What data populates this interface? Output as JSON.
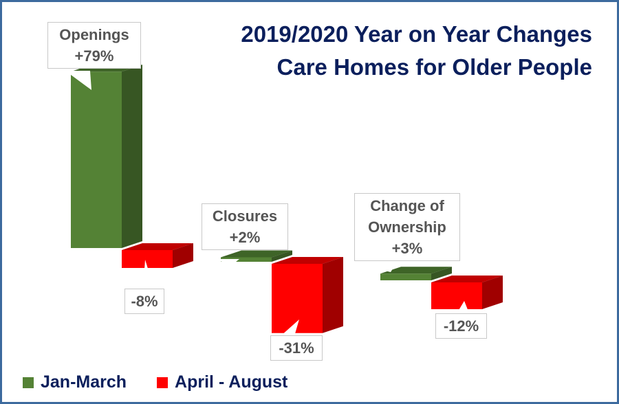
{
  "chart_data": {
    "type": "bar",
    "title": [
      "2019/2020 Year on Year Changes",
      "Care Homes for Older People"
    ],
    "categories": [
      "Openings",
      "Closures",
      "Change of Ownership"
    ],
    "series": [
      {
        "name": "Jan-March",
        "color": "#548235",
        "values": [
          79,
          2,
          3
        ],
        "labels": [
          "+79%",
          "+2%",
          "+3%"
        ]
      },
      {
        "name": "April - August",
        "color": "#ff0000",
        "values": [
          -8,
          -31,
          -12
        ],
        "labels": [
          "-8%",
          "-31%",
          "-12%"
        ]
      }
    ],
    "category_label_lines": [
      [
        "Openings"
      ],
      [
        "Closures"
      ],
      [
        "Change of",
        "Ownership"
      ]
    ],
    "legend_position": "bottom-left",
    "grid": false
  }
}
